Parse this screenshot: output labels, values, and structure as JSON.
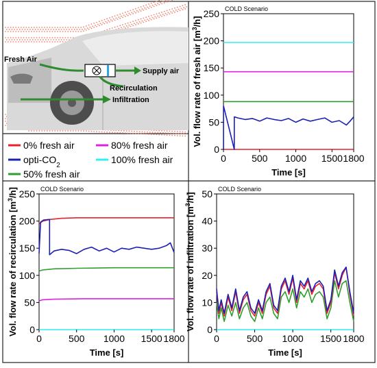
{
  "diagram": {
    "fresh_air": "Fresh Air",
    "supply_air": "Supply air",
    "recirculation": "Recirculation",
    "infiltration": "Infiltration"
  },
  "legend": [
    {
      "label": "0% fresh air",
      "color": "#e8212a"
    },
    {
      "label": "opti-CO",
      "subscript": "2",
      "color": "#1a1fb5"
    },
    {
      "label": "50% fresh air",
      "color": "#2e9e2e"
    },
    {
      "label": "80% fresh air",
      "color": "#e020e0"
    },
    {
      "label": "100% fresh air",
      "color": "#2ff0f0"
    }
  ],
  "colors": {
    "zero_pct": "#e8212a",
    "opti": "#1a1fb5",
    "fifty_pct": "#2e9e2e",
    "eighty_pct": "#e020e0",
    "hundred_pct": "#2ff0f0",
    "airflow_dots": "#f08070"
  },
  "chart_data": [
    {
      "id": "fresh",
      "type": "line",
      "scenario": "COLD Scenario",
      "ylabel": "Vol. flow rate of fresh air [m3/h]",
      "xlabel": "Time [s]",
      "xlim": [
        0,
        1800
      ],
      "ylim": [
        0,
        250
      ],
      "xticks": [
        0,
        500,
        1000,
        1500,
        1800
      ],
      "yticks": [
        0,
        50,
        100,
        150,
        200,
        250
      ],
      "series": [
        {
          "key": "zero_pct",
          "x": [
            0,
            1800
          ],
          "y": [
            0,
            0
          ]
        },
        {
          "key": "hundred_pct",
          "x": [
            0,
            1800
          ],
          "y": [
            197,
            197
          ]
        },
        {
          "key": "eighty_pct",
          "x": [
            0,
            1800
          ],
          "y": [
            143,
            143
          ]
        },
        {
          "key": "fifty_pct",
          "x": [
            0,
            1800
          ],
          "y": [
            88,
            88
          ]
        },
        {
          "key": "opti",
          "x": [
            0,
            1,
            1,
            150,
            150,
            200,
            300,
            400,
            500,
            600,
            700,
            800,
            900,
            1000,
            1100,
            1200,
            1300,
            1400,
            1500,
            1600,
            1700,
            1750,
            1800
          ],
          "y": [
            0,
            0,
            80,
            0,
            60,
            58,
            55,
            57,
            52,
            58,
            55,
            53,
            57,
            50,
            56,
            52,
            55,
            58,
            50,
            53,
            45,
            52,
            60
          ]
        }
      ]
    },
    {
      "id": "recirc",
      "type": "line",
      "scenario": "COLD Scenario",
      "ylabel": "Vol. flow rate of recirculation [m3/h]",
      "xlabel": "Time [s]",
      "xlim": [
        0,
        1800
      ],
      "ylim": [
        0,
        250
      ],
      "xticks": [
        0,
        500,
        1000,
        1500,
        1800
      ],
      "yticks": [
        0,
        50,
        100,
        150,
        200,
        250
      ],
      "series": [
        {
          "key": "zero_pct",
          "x": [
            0,
            50,
            150,
            300,
            500,
            800,
            1200,
            1800
          ],
          "y": [
            195,
            200,
            203,
            205,
            206,
            206,
            206,
            206
          ]
        },
        {
          "key": "eighty_pct",
          "x": [
            0,
            50,
            200,
            600,
            1800
          ],
          "y": [
            53,
            55,
            56,
            57,
            57
          ]
        },
        {
          "key": "fifty_pct",
          "x": [
            0,
            50,
            200,
            500,
            1000,
            1800
          ],
          "y": [
            108,
            110,
            112,
            113,
            114,
            114
          ]
        },
        {
          "key": "hundred_pct",
          "x": [
            0,
            1800
          ],
          "y": [
            0,
            0
          ]
        },
        {
          "key": "opti",
          "x": [
            0,
            20,
            60,
            140,
            140,
            200,
            300,
            400,
            500,
            600,
            700,
            800,
            900,
            1000,
            1100,
            1200,
            1300,
            1400,
            1500,
            1600,
            1700,
            1750,
            1800
          ],
          "y": [
            140,
            198,
            202,
            203,
            138,
            145,
            148,
            146,
            140,
            148,
            152,
            145,
            150,
            143,
            150,
            148,
            152,
            150,
            148,
            150,
            155,
            160,
            142
          ]
        }
      ]
    },
    {
      "id": "infil",
      "type": "line",
      "scenario": "COLD Scenario",
      "ylabel": "Vol. flow rate of infiltration [m3/h]",
      "xlabel": "Time [s]",
      "xlim": [
        0,
        1800
      ],
      "ylim": [
        0,
        50
      ],
      "xticks": [
        0,
        500,
        1000,
        1500,
        1800
      ],
      "yticks": [
        0,
        10,
        20,
        30,
        40,
        50
      ],
      "series": [
        {
          "key": "hundred_pct",
          "x": [
            0,
            1800
          ],
          "y": [
            0,
            0
          ]
        },
        {
          "key": "fifty_pct",
          "x": [
            0,
            30,
            60,
            100,
            150,
            200,
            250,
            300,
            350,
            400,
            450,
            500,
            550,
            600,
            650,
            700,
            750,
            800,
            850,
            900,
            950,
            1000,
            1050,
            1100,
            1150,
            1200,
            1250,
            1300,
            1350,
            1400,
            1450,
            1500,
            1550,
            1600,
            1650,
            1700,
            1750,
            1800
          ],
          "y": [
            10,
            4,
            8,
            3,
            9,
            5,
            10,
            4,
            8,
            10,
            5,
            3,
            8,
            4,
            10,
            12,
            6,
            4,
            12,
            14,
            10,
            15,
            8,
            14,
            12,
            15,
            10,
            13,
            14,
            12,
            4,
            8,
            18,
            12,
            17,
            18,
            10,
            3
          ]
        },
        {
          "key": "zero_pct",
          "x": [
            0,
            30,
            60,
            100,
            150,
            200,
            250,
            300,
            350,
            400,
            450,
            500,
            550,
            600,
            650,
            700,
            750,
            800,
            850,
            900,
            950,
            1000,
            1050,
            1100,
            1150,
            1200,
            1250,
            1300,
            1350,
            1400,
            1450,
            1500,
            1550,
            1600,
            1650,
            1700,
            1750,
            1800
          ],
          "y": [
            14,
            6,
            10,
            5,
            12,
            7,
            14,
            6,
            11,
            13,
            7,
            5,
            10,
            6,
            13,
            16,
            8,
            6,
            15,
            18,
            13,
            19,
            10,
            17,
            15,
            18,
            13,
            16,
            17,
            15,
            6,
            10,
            21,
            15,
            20,
            23,
            13,
            5
          ]
        },
        {
          "key": "opti",
          "x": [
            0,
            30,
            60,
            100,
            150,
            200,
            250,
            300,
            350,
            400,
            450,
            500,
            550,
            600,
            650,
            700,
            750,
            800,
            850,
            900,
            950,
            1000,
            1050,
            1100,
            1150,
            1200,
            1250,
            1300,
            1350,
            1400,
            1450,
            1500,
            1550,
            1600,
            1650,
            1700,
            1750,
            1800
          ],
          "y": [
            15,
            7,
            11,
            6,
            13,
            8,
            15,
            7,
            12,
            14,
            8,
            6,
            11,
            7,
            14,
            17,
            9,
            7,
            16,
            19,
            14,
            20,
            11,
            18,
            16,
            19,
            14,
            17,
            18,
            16,
            7,
            11,
            22,
            16,
            21,
            23,
            14,
            6
          ]
        }
      ]
    }
  ]
}
